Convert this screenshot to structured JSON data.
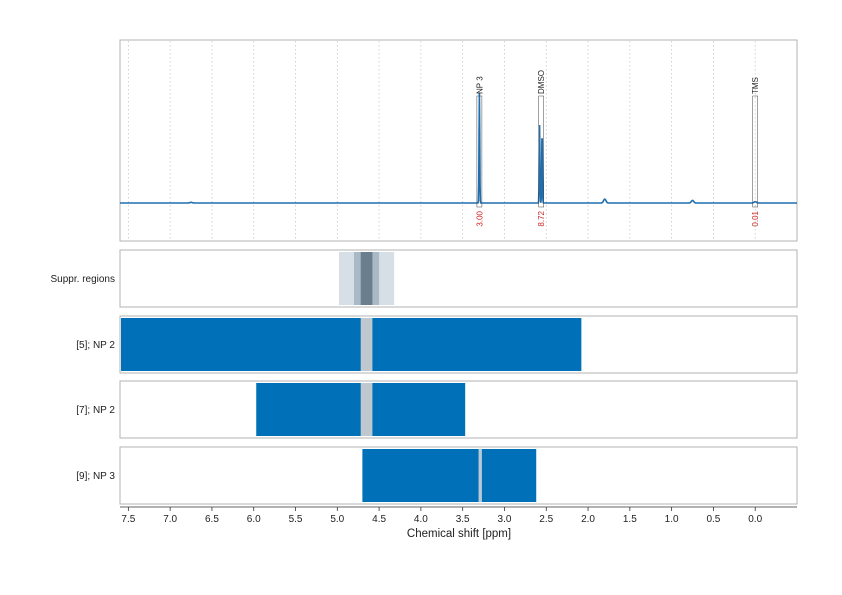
{
  "chart_data": {
    "type": "line",
    "xlabel": "Chemical shift [ppm]",
    "xlim": [
      7.6,
      -0.5
    ],
    "x_reversed": true,
    "xticks": [
      7.5,
      7.0,
      6.5,
      6.0,
      5.5,
      5.0,
      4.5,
      4.0,
      3.5,
      3.0,
      2.5,
      2.0,
      1.5,
      1.0,
      0.5,
      0.0
    ],
    "xtick_labels": [
      "7.5",
      "7.0",
      "6.5",
      "6.0",
      "5.5",
      "5.0",
      "4.5",
      "4.0",
      "3.5",
      "3.0",
      "2.5",
      "2.0",
      "1.5",
      "1.0",
      "0.5",
      "0.0"
    ],
    "grid": true,
    "spectrum": {
      "color": "#1f6fb0",
      "peaks": [
        {
          "x": 3.3,
          "height": 0.85
        },
        {
          "x": 2.58,
          "height": 0.6
        },
        {
          "x": 2.55,
          "height": 0.55
        },
        {
          "x": 1.8,
          "height": 0.03
        },
        {
          "x": 0.75,
          "height": 0.02
        },
        {
          "x": 0.0,
          "height": 0.01
        },
        {
          "x": 6.75,
          "height": 0.005
        }
      ]
    },
    "peak_annotations": [
      {
        "label": "NP 3",
        "x": 3.3,
        "integral": "3.00"
      },
      {
        "label": "DMSO",
        "x": 2.56,
        "integral": "8.72"
      },
      {
        "label": "TMS",
        "x": 0.0,
        "integral": "0.01"
      }
    ],
    "rows": [
      {
        "label": "Suppr. regions",
        "bands": [
          {
            "from": 4.98,
            "to": 4.32,
            "color": "#d6dfe6"
          },
          {
            "from": 4.8,
            "to": 4.5,
            "color": "#a9b9c6"
          },
          {
            "from": 4.72,
            "to": 4.58,
            "color": "#6b7e8e"
          }
        ]
      },
      {
        "label": "[5]; NP 2",
        "bands": [
          {
            "from": 7.6,
            "to": 2.08,
            "color": "#0070b8"
          },
          {
            "from": 4.72,
            "to": 4.58,
            "color": "#c0c8cf"
          }
        ]
      },
      {
        "label": "[7]; NP 2",
        "bands": [
          {
            "from": 5.97,
            "to": 3.47,
            "color": "#0070b8"
          },
          {
            "from": 4.72,
            "to": 4.58,
            "color": "#c0c8cf"
          }
        ]
      },
      {
        "label": "[9]; NP 3",
        "bands": [
          {
            "from": 4.7,
            "to": 2.62,
            "color": "#0070b8"
          },
          {
            "from": 3.31,
            "to": 3.27,
            "color": "#b9c9d6"
          }
        ]
      }
    ]
  }
}
